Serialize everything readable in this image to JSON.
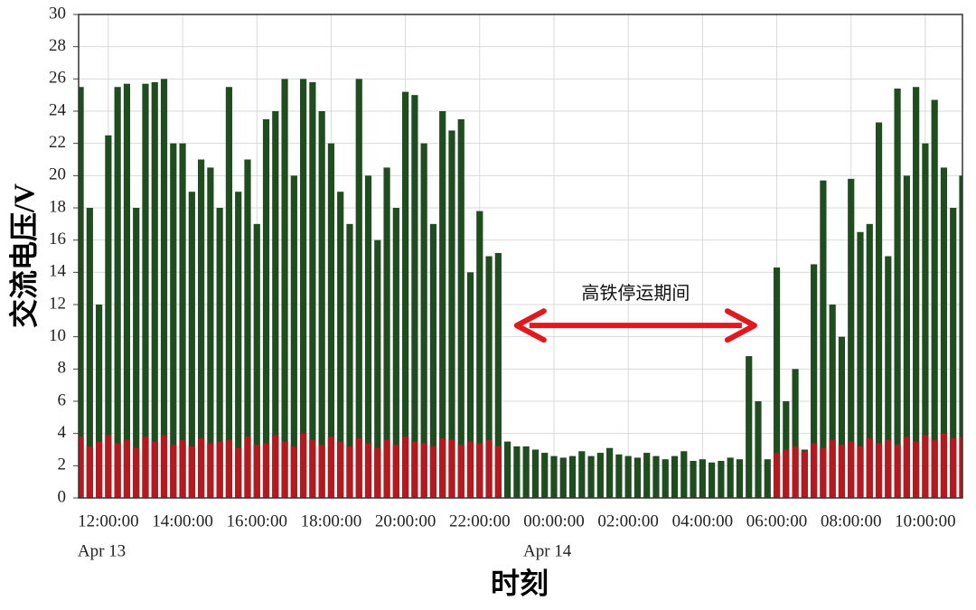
{
  "chart_data": {
    "type": "bar",
    "xlabel": "时刻",
    "ylabel": "交流电压/V",
    "x": [
      11.25,
      11.5,
      11.75,
      12,
      12.25,
      12.5,
      12.75,
      13,
      13.25,
      13.5,
      13.75,
      14,
      14.25,
      14.5,
      14.75,
      15,
      15.25,
      15.5,
      15.75,
      16,
      16.25,
      16.5,
      16.75,
      17,
      17.25,
      17.5,
      17.75,
      18,
      18.25,
      18.5,
      18.75,
      19,
      19.25,
      19.5,
      19.75,
      20,
      20.25,
      20.5,
      20.75,
      21,
      21.25,
      21.5,
      21.75,
      22,
      22.25,
      22.5,
      22.75,
      23,
      23.25,
      23.5,
      23.75,
      24,
      24.25,
      24.5,
      24.75,
      25,
      25.25,
      25.5,
      25.75,
      26,
      26.25,
      26.5,
      26.75,
      27,
      27.25,
      27.5,
      27.75,
      28,
      28.25,
      28.5,
      28.75,
      29,
      29.25,
      29.5,
      29.75,
      30,
      30.25,
      30.5,
      30.75,
      31,
      31.25,
      31.5,
      31.75,
      32,
      32.25,
      32.5,
      32.75,
      33,
      33.25,
      33.5,
      33.75,
      34,
      34.25,
      34.5,
      34.75,
      35
    ],
    "series": [
      {
        "color": "#1f4d1f",
        "values": [
          25.5,
          18,
          12,
          22.5,
          25.5,
          25.7,
          18,
          25.7,
          25.8,
          26,
          22,
          22,
          19,
          21,
          20.5,
          18,
          25.5,
          19,
          21,
          17,
          23.5,
          24,
          26,
          20,
          26,
          25.8,
          24,
          22,
          19,
          17,
          26,
          20,
          16,
          20.5,
          18,
          25.2,
          25,
          22,
          17,
          24,
          22.8,
          23.5,
          14,
          17.8,
          15,
          15.2,
          3.5,
          3.2,
          3.2,
          3,
          2.8,
          2.6,
          2.5,
          2.6,
          2.9,
          2.6,
          2.8,
          3.1,
          2.7,
          2.6,
          2.5,
          2.8,
          2.6,
          2.4,
          2.6,
          2.9,
          2.3,
          2.4,
          2.2,
          2.3,
          2.5,
          2.4,
          8.8,
          6,
          2.4,
          14.3,
          6,
          8,
          3,
          14.5,
          19.7,
          12,
          10,
          19.8,
          16.5,
          17,
          23.3,
          15,
          25.4,
          20,
          25.5,
          22,
          24.7,
          20.5,
          18,
          20
        ]
      },
      {
        "color": "#b3191e",
        "values": [
          3.8,
          3.2,
          3.5,
          3.9,
          3.4,
          3.6,
          3.1,
          3.8,
          3.5,
          3.9,
          3.3,
          3.6,
          3.2,
          3.7,
          3.4,
          3.5,
          3.6,
          3.1,
          3.8,
          3.3,
          3.4,
          3.9,
          3.5,
          3.2,
          4,
          3.6,
          3.3,
          3.8,
          3.5,
          3.2,
          3.7,
          3.4,
          3.1,
          3.6,
          3.3,
          3.8,
          3.5,
          3.4,
          3.2,
          3.7,
          3.6,
          3.3,
          3.5,
          3.4,
          3.6,
          3.2,
          null,
          null,
          null,
          null,
          null,
          null,
          null,
          null,
          null,
          null,
          null,
          null,
          null,
          null,
          null,
          null,
          null,
          null,
          null,
          null,
          null,
          null,
          null,
          null,
          null,
          null,
          null,
          null,
          null,
          2.8,
          3,
          3.2,
          2.9,
          3.4,
          3.1,
          3.6,
          3.3,
          3.5,
          3.2,
          3.7,
          3.4,
          3.6,
          3.3,
          3.8,
          3.5,
          3.9,
          3.6,
          4,
          3.7,
          3.8
        ]
      }
    ],
    "xlim": [
      11.2,
      35
    ],
    "xticks": [
      {
        "value": 12,
        "label": "12:00:00"
      },
      {
        "value": 14,
        "label": "14:00:00"
      },
      {
        "value": 16,
        "label": "16:00:00"
      },
      {
        "value": 18,
        "label": "18:00:00"
      },
      {
        "value": 20,
        "label": "20:00:00"
      },
      {
        "value": 22,
        "label": "22:00:00"
      },
      {
        "value": 24,
        "label": "00:00:00"
      },
      {
        "value": 26,
        "label": "02:00:00"
      },
      {
        "value": 28,
        "label": "04:00:00"
      },
      {
        "value": 30,
        "label": "06:00:00"
      },
      {
        "value": 32,
        "label": "08:00:00"
      },
      {
        "value": 34,
        "label": "10:00:00"
      }
    ],
    "date_labels": [
      {
        "value": 12,
        "label": "Apr 13"
      },
      {
        "value": 24,
        "label": "Apr 14"
      }
    ],
    "ylim": [
      0,
      30
    ],
    "yticks": [
      0,
      2,
      4,
      6,
      8,
      10,
      12,
      14,
      16,
      18,
      20,
      22,
      24,
      26,
      28,
      30
    ],
    "grid": true,
    "annotation": {
      "text": "高铁停运期间",
      "x": [
        23.0,
        29.4
      ],
      "y": 10.7,
      "color": "#e0191e"
    }
  }
}
